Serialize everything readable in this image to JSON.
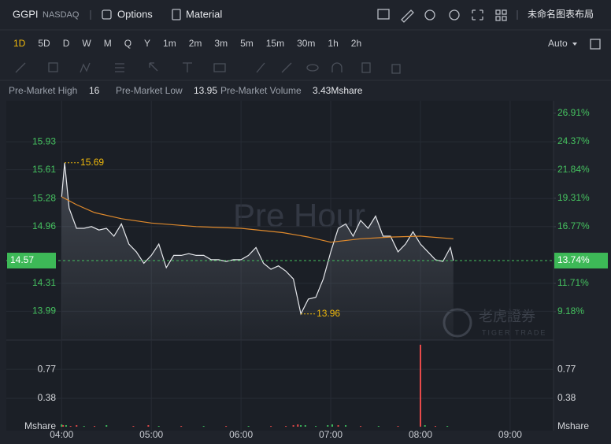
{
  "header": {
    "symbol": "GGPI",
    "exchange": "NASDAQ",
    "options": "Options",
    "material": "Material",
    "layout_name": "未命名图表布局"
  },
  "periods": [
    "1D",
    "5D",
    "D",
    "W",
    "M",
    "Q",
    "Y",
    "1m",
    "2m",
    "3m",
    "5m",
    "15m",
    "30m",
    "1h",
    "2h"
  ],
  "scale_mode": "Auto",
  "stats": {
    "high_label": "Pre-Market High",
    "high": 16.0,
    "low_label": "Pre-Market Low",
    "low": 13.95,
    "volume_label": "Pre-Market Volume",
    "volume": "3.43Mshare"
  },
  "watermark": "Pre Hour",
  "logo": {
    "name": "老虎證券",
    "sub": "TIGER TRADE"
  },
  "chart_data": {
    "type": "line",
    "series": [
      {
        "color": "#e6e8ec",
        "x": [
          0,
          2,
          5,
          10,
          15,
          20,
          25,
          30,
          35,
          40,
          45,
          50,
          55,
          60,
          65,
          70,
          75,
          80,
          85,
          90,
          95,
          100,
          105,
          110,
          115,
          120,
          125,
          130,
          135,
          140,
          145,
          150,
          155,
          160,
          165,
          170,
          175,
          180,
          185,
          190,
          195,
          200,
          205,
          210,
          215,
          220,
          225,
          230,
          235,
          240,
          245,
          250,
          255,
          260,
          262
        ],
        "values": [
          15.3,
          15.69,
          15.17,
          14.94,
          14.94,
          14.96,
          14.92,
          14.94,
          14.85,
          14.99,
          14.76,
          14.67,
          14.54,
          14.63,
          14.76,
          14.49,
          14.63,
          14.63,
          14.65,
          14.63,
          14.63,
          14.58,
          14.58,
          14.56,
          14.58,
          14.58,
          14.63,
          14.72,
          14.54,
          14.47,
          14.51,
          14.45,
          14.36,
          13.96,
          14.13,
          14.15,
          14.36,
          14.67,
          14.94,
          14.99,
          14.85,
          15.03,
          14.94,
          15.08,
          14.85,
          14.85,
          14.67,
          14.76,
          14.9,
          14.76,
          14.67,
          14.58,
          14.56,
          14.72,
          14.57
        ]
      },
      {
        "color": "#e08a2c",
        "x": [
          0,
          10,
          22,
          40,
          60,
          90,
          120,
          148,
          165,
          180,
          200,
          220,
          240,
          262
        ],
        "values": [
          15.3,
          15.21,
          15.12,
          15.05,
          15.0,
          14.96,
          14.94,
          14.89,
          14.84,
          14.78,
          14.82,
          14.84,
          14.85,
          14.82
        ]
      }
    ],
    "high_index": 1,
    "low_index": 33,
    "current": 14.57,
    "current_pct": {
      "value": 13.74,
      "label": "13.74%"
    },
    "xlim": [
      -37,
      329
    ],
    "xticks": [
      {
        "value": 0,
        "label": "04:00"
      },
      {
        "value": 60,
        "label": "05:00"
      },
      {
        "value": 120,
        "label": "06:00"
      },
      {
        "value": 180,
        "label": "07:00"
      },
      {
        "value": 240,
        "label": "08:00"
      },
      {
        "value": 300,
        "label": "09:00"
      }
    ],
    "ylim": [
      13.66,
      16.4
    ],
    "yticks": [
      13.99,
      14.31,
      14.96,
      15.28,
      15.61,
      15.93
    ],
    "y2lim": [
      6.64,
      28.02
    ],
    "y2ticks": [
      {
        "value": 9.18,
        "label": "9.18%"
      },
      {
        "value": 11.71,
        "label": "11.71%"
      },
      {
        "value": 16.77,
        "label": "16.77%"
      },
      {
        "value": 19.31,
        "label": "19.31%"
      },
      {
        "value": 21.84,
        "label": "21.84%"
      },
      {
        "value": 24.37,
        "label": "24.37%"
      },
      {
        "value": 26.91,
        "label": "26.91%"
      }
    ],
    "grid": true,
    "volume": {
      "unit": "Mshare",
      "ylim": [
        0,
        1.12
      ],
      "yticks": [
        0.38,
        0.77
      ],
      "x": [
        0,
        1,
        3,
        6,
        10,
        15,
        22,
        30,
        48,
        58,
        65,
        80,
        95,
        110,
        125,
        140,
        150,
        155,
        158,
        160,
        163,
        170,
        178,
        181,
        185,
        190,
        200,
        212,
        225,
        240,
        243,
        250,
        258
      ],
      "values": [
        0.03,
        0.02,
        0.02,
        0.01,
        0.02,
        0.01,
        0.01,
        0.02,
        0.01,
        0.02,
        0.01,
        0.01,
        0.01,
        0.01,
        0.01,
        0.01,
        0.01,
        0.02,
        0.03,
        0.02,
        0.02,
        0.01,
        0.02,
        0.03,
        0.02,
        0.02,
        0.01,
        0.01,
        0.01,
        1.1,
        0.02,
        0.01,
        0.01
      ],
      "colors": [
        "#3fbf5f",
        "#e84a4a",
        "#3fbf5f",
        "#e84a4a",
        "#e84a4a",
        "#3fbf5f",
        "#e84a4a",
        "#3fbf5f",
        "#e84a4a",
        "#e84a4a",
        "#3fbf5f",
        "#e84a4a",
        "#3fbf5f",
        "#e84a4a",
        "#3fbf5f",
        "#e84a4a",
        "#e84a4a",
        "#e84a4a",
        "#e84a4a",
        "#3fbf5f",
        "#3fbf5f",
        "#3fbf5f",
        "#3fbf5f",
        "#3fbf5f",
        "#e84a4a",
        "#3fbf5f",
        "#e84a4a",
        "#3fbf5f",
        "#e84a4a",
        "#e84a4a",
        "#3fbf5f",
        "#e84a4a",
        "#3fbf5f"
      ]
    }
  }
}
